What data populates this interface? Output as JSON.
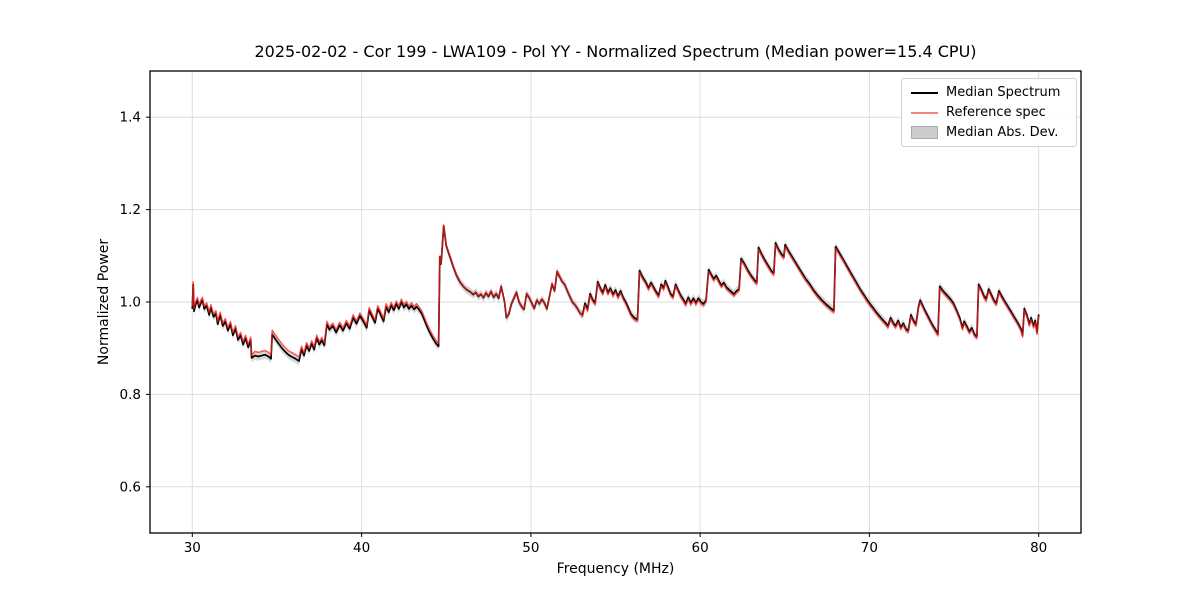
{
  "chart_data": {
    "type": "line",
    "title": "2025-02-02 - Cor 199 - LWA109 - Pol YY - Normalized Spectrum (Median power=15.4 CPU)",
    "xlabel": "Frequency (MHz)",
    "ylabel": "Normalized Power",
    "xlim": [
      27.5,
      82.5
    ],
    "ylim": [
      0.5,
      1.5
    ],
    "xticks": [
      30,
      40,
      50,
      60,
      70,
      80
    ],
    "yticks": [
      0.6,
      0.8,
      1.0,
      1.2,
      1.4
    ],
    "grid": true,
    "legend": {
      "position": "upper right",
      "entries": [
        {
          "label": "Median Spectrum",
          "type": "line"
        },
        {
          "label": "Reference spec",
          "type": "line"
        },
        {
          "label": "Median Abs. Dev.",
          "type": "patch"
        }
      ]
    },
    "colors": {
      "grid": "#dedede",
      "frame": "#000000",
      "tick_text": "#000000",
      "median_line": "#000000",
      "reference_line": "#ff2020",
      "reference_opacity": 0.72,
      "band_fill": "#999999",
      "band_opacity": 0.4,
      "legend_median_swatch": "#000000",
      "legend_reference_swatch": "#f58080",
      "legend_band_fill": "#cccccc",
      "legend_band_edge": "#ababab"
    },
    "mad_halfwidth": 0.009,
    "reference_offsets": [
      {
        "from": 27.5,
        "to": 33.5,
        "dv": 0.006
      },
      {
        "from": 33.5,
        "to": 36.4,
        "dv": 0.009
      },
      {
        "from": 36.4,
        "to": 44.6,
        "dv": 0.006
      },
      {
        "from": 44.6,
        "to": 53.0,
        "dv": 0.001
      },
      {
        "from": 53.0,
        "to": 82.5,
        "dv": -0.004
      }
    ],
    "median_points": [
      [
        30.0,
        0.985
      ],
      [
        30.05,
        1.038
      ],
      [
        30.1,
        0.98
      ],
      [
        30.2,
        0.995
      ],
      [
        30.3,
        1.004
      ],
      [
        30.4,
        0.988
      ],
      [
        30.5,
        0.998
      ],
      [
        30.6,
        1.004
      ],
      [
        30.7,
        0.985
      ],
      [
        30.85,
        0.992
      ],
      [
        31.0,
        0.972
      ],
      [
        31.1,
        0.988
      ],
      [
        31.25,
        0.968
      ],
      [
        31.4,
        0.975
      ],
      [
        31.5,
        0.952
      ],
      [
        31.65,
        0.972
      ],
      [
        31.8,
        0.948
      ],
      [
        31.95,
        0.958
      ],
      [
        32.1,
        0.938
      ],
      [
        32.25,
        0.952
      ],
      [
        32.4,
        0.928
      ],
      [
        32.55,
        0.943
      ],
      [
        32.7,
        0.918
      ],
      [
        32.85,
        0.928
      ],
      [
        33.0,
        0.908
      ],
      [
        33.15,
        0.922
      ],
      [
        33.3,
        0.902
      ],
      [
        33.45,
        0.918
      ],
      [
        33.5,
        0.879
      ],
      [
        33.7,
        0.884
      ],
      [
        33.9,
        0.882
      ],
      [
        34.1,
        0.884
      ],
      [
        34.3,
        0.886
      ],
      [
        34.5,
        0.882
      ],
      [
        34.65,
        0.877
      ],
      [
        34.72,
        0.93
      ],
      [
        34.9,
        0.92
      ],
      [
        35.1,
        0.91
      ],
      [
        35.3,
        0.9
      ],
      [
        35.5,
        0.892
      ],
      [
        35.7,
        0.885
      ],
      [
        35.9,
        0.881
      ],
      [
        36.1,
        0.877
      ],
      [
        36.3,
        0.872
      ],
      [
        36.45,
        0.898
      ],
      [
        36.6,
        0.884
      ],
      [
        36.75,
        0.906
      ],
      [
        36.9,
        0.894
      ],
      [
        37.05,
        0.91
      ],
      [
        37.2,
        0.897
      ],
      [
        37.35,
        0.922
      ],
      [
        37.5,
        0.908
      ],
      [
        37.65,
        0.917
      ],
      [
        37.8,
        0.906
      ],
      [
        37.95,
        0.952
      ],
      [
        38.1,
        0.94
      ],
      [
        38.3,
        0.948
      ],
      [
        38.5,
        0.934
      ],
      [
        38.7,
        0.95
      ],
      [
        38.9,
        0.938
      ],
      [
        39.1,
        0.954
      ],
      [
        39.3,
        0.942
      ],
      [
        39.5,
        0.966
      ],
      [
        39.7,
        0.953
      ],
      [
        39.9,
        0.97
      ],
      [
        40.1,
        0.958
      ],
      [
        40.3,
        0.944
      ],
      [
        40.45,
        0.982
      ],
      [
        40.6,
        0.97
      ],
      [
        40.8,
        0.955
      ],
      [
        40.95,
        0.986
      ],
      [
        41.1,
        0.975
      ],
      [
        41.3,
        0.958
      ],
      [
        41.45,
        0.99
      ],
      [
        41.6,
        0.978
      ],
      [
        41.75,
        0.993
      ],
      [
        41.9,
        0.982
      ],
      [
        42.05,
        0.996
      ],
      [
        42.2,
        0.985
      ],
      [
        42.35,
        1.0
      ],
      [
        42.5,
        0.988
      ],
      [
        42.65,
        0.995
      ],
      [
        42.8,
        0.985
      ],
      [
        42.95,
        0.992
      ],
      [
        43.1,
        0.984
      ],
      [
        43.25,
        0.99
      ],
      [
        43.4,
        0.983
      ],
      [
        43.55,
        0.975
      ],
      [
        43.7,
        0.962
      ],
      [
        43.85,
        0.948
      ],
      [
        44.0,
        0.936
      ],
      [
        44.2,
        0.922
      ],
      [
        44.4,
        0.91
      ],
      [
        44.55,
        0.904
      ],
      [
        44.62,
        1.098
      ],
      [
        44.7,
        1.082
      ],
      [
        44.85,
        1.165
      ],
      [
        45.0,
        1.122
      ],
      [
        45.2,
        1.1
      ],
      [
        45.4,
        1.078
      ],
      [
        45.6,
        1.058
      ],
      [
        45.8,
        1.044
      ],
      [
        46.0,
        1.034
      ],
      [
        46.2,
        1.027
      ],
      [
        46.45,
        1.021
      ],
      [
        46.6,
        1.016
      ],
      [
        46.75,
        1.021
      ],
      [
        46.9,
        1.012
      ],
      [
        47.05,
        1.017
      ],
      [
        47.2,
        1.009
      ],
      [
        47.35,
        1.02
      ],
      [
        47.5,
        1.012
      ],
      [
        47.65,
        1.023
      ],
      [
        47.8,
        1.01
      ],
      [
        47.95,
        1.018
      ],
      [
        48.1,
        1.008
      ],
      [
        48.25,
        1.034
      ],
      [
        48.45,
        1.0
      ],
      [
        48.55,
        0.966
      ],
      [
        48.7,
        0.974
      ],
      [
        48.85,
        0.996
      ],
      [
        49.0,
        1.008
      ],
      [
        49.15,
        1.021
      ],
      [
        49.3,
        1.0
      ],
      [
        49.45,
        0.99
      ],
      [
        49.6,
        0.984
      ],
      [
        49.75,
        1.018
      ],
      [
        49.9,
        1.009
      ],
      [
        50.05,
        0.998
      ],
      [
        50.2,
        0.986
      ],
      [
        50.35,
        1.004
      ],
      [
        50.5,
        0.996
      ],
      [
        50.65,
        1.006
      ],
      [
        50.8,
        0.998
      ],
      [
        50.95,
        0.985
      ],
      [
        51.1,
        1.012
      ],
      [
        51.25,
        1.039
      ],
      [
        51.4,
        1.024
      ],
      [
        51.55,
        1.066
      ],
      [
        51.7,
        1.055
      ],
      [
        51.85,
        1.044
      ],
      [
        52.0,
        1.038
      ],
      [
        52.15,
        1.024
      ],
      [
        52.3,
        1.012
      ],
      [
        52.45,
        1.0
      ],
      [
        52.6,
        0.994
      ],
      [
        52.75,
        0.986
      ],
      [
        52.9,
        0.976
      ],
      [
        53.05,
        0.972
      ],
      [
        53.2,
        0.997
      ],
      [
        53.35,
        0.984
      ],
      [
        53.5,
        1.018
      ],
      [
        53.65,
        1.005
      ],
      [
        53.8,
        0.998
      ],
      [
        53.95,
        1.044
      ],
      [
        54.1,
        1.03
      ],
      [
        54.25,
        1.02
      ],
      [
        54.4,
        1.037
      ],
      [
        54.55,
        1.02
      ],
      [
        54.7,
        1.03
      ],
      [
        54.85,
        1.016
      ],
      [
        55.0,
        1.026
      ],
      [
        55.15,
        1.012
      ],
      [
        55.3,
        1.024
      ],
      [
        55.45,
        1.01
      ],
      [
        55.6,
        1.0
      ],
      [
        55.75,
        0.988
      ],
      [
        55.9,
        0.975
      ],
      [
        56.1,
        0.966
      ],
      [
        56.3,
        0.962
      ],
      [
        56.42,
        1.068
      ],
      [
        56.6,
        1.054
      ],
      [
        56.8,
        1.042
      ],
      [
        56.95,
        1.03
      ],
      [
        57.1,
        1.042
      ],
      [
        57.25,
        1.032
      ],
      [
        57.4,
        1.022
      ],
      [
        57.55,
        1.014
      ],
      [
        57.7,
        1.038
      ],
      [
        57.85,
        1.03
      ],
      [
        57.95,
        1.046
      ],
      [
        58.1,
        1.032
      ],
      [
        58.25,
        1.018
      ],
      [
        58.4,
        1.012
      ],
      [
        58.55,
        1.038
      ],
      [
        58.7,
        1.026
      ],
      [
        58.85,
        1.014
      ],
      [
        59.0,
        1.006
      ],
      [
        59.15,
        0.996
      ],
      [
        59.3,
        1.01
      ],
      [
        59.45,
        0.998
      ],
      [
        59.6,
        1.008
      ],
      [
        59.75,
        0.998
      ],
      [
        59.9,
        1.008
      ],
      [
        60.05,
        1.0
      ],
      [
        60.2,
        0.996
      ],
      [
        60.35,
        1.004
      ],
      [
        60.5,
        1.07
      ],
      [
        60.65,
        1.06
      ],
      [
        60.8,
        1.05
      ],
      [
        60.95,
        1.057
      ],
      [
        61.1,
        1.046
      ],
      [
        61.25,
        1.036
      ],
      [
        61.4,
        1.042
      ],
      [
        61.55,
        1.032
      ],
      [
        61.7,
        1.027
      ],
      [
        61.85,
        1.022
      ],
      [
        62.0,
        1.017
      ],
      [
        62.15,
        1.024
      ],
      [
        62.3,
        1.028
      ],
      [
        62.42,
        1.094
      ],
      [
        62.6,
        1.084
      ],
      [
        62.8,
        1.07
      ],
      [
        63.0,
        1.058
      ],
      [
        63.2,
        1.048
      ],
      [
        63.35,
        1.042
      ],
      [
        63.45,
        1.118
      ],
      [
        63.6,
        1.106
      ],
      [
        63.8,
        1.092
      ],
      [
        64.0,
        1.08
      ],
      [
        64.2,
        1.068
      ],
      [
        64.35,
        1.062
      ],
      [
        64.45,
        1.128
      ],
      [
        64.6,
        1.116
      ],
      [
        64.8,
        1.104
      ],
      [
        64.95,
        1.098
      ],
      [
        65.02,
        1.124
      ],
      [
        65.2,
        1.112
      ],
      [
        65.4,
        1.1
      ],
      [
        65.6,
        1.088
      ],
      [
        65.8,
        1.076
      ],
      [
        66.0,
        1.064
      ],
      [
        66.2,
        1.052
      ],
      [
        66.45,
        1.04
      ],
      [
        66.7,
        1.026
      ],
      [
        66.95,
        1.014
      ],
      [
        67.2,
        1.004
      ],
      [
        67.45,
        0.995
      ],
      [
        67.7,
        0.987
      ],
      [
        67.9,
        0.981
      ],
      [
        68.0,
        1.12
      ],
      [
        68.2,
        1.108
      ],
      [
        68.45,
        1.092
      ],
      [
        68.7,
        1.076
      ],
      [
        68.95,
        1.06
      ],
      [
        69.2,
        1.044
      ],
      [
        69.45,
        1.028
      ],
      [
        69.7,
        1.014
      ],
      [
        69.95,
        1.0
      ],
      [
        70.2,
        0.988
      ],
      [
        70.45,
        0.976
      ],
      [
        70.7,
        0.965
      ],
      [
        70.95,
        0.955
      ],
      [
        71.1,
        0.948
      ],
      [
        71.25,
        0.966
      ],
      [
        71.4,
        0.955
      ],
      [
        71.55,
        0.948
      ],
      [
        71.7,
        0.96
      ],
      [
        71.85,
        0.945
      ],
      [
        72.0,
        0.954
      ],
      [
        72.15,
        0.942
      ],
      [
        72.3,
        0.938
      ],
      [
        72.45,
        0.972
      ],
      [
        72.6,
        0.96
      ],
      [
        72.75,
        0.952
      ],
      [
        72.9,
        0.99
      ],
      [
        73.0,
        1.004
      ],
      [
        73.15,
        0.992
      ],
      [
        73.3,
        0.98
      ],
      [
        73.5,
        0.966
      ],
      [
        73.7,
        0.952
      ],
      [
        73.9,
        0.94
      ],
      [
        74.05,
        0.931
      ],
      [
        74.15,
        1.034
      ],
      [
        74.35,
        1.024
      ],
      [
        74.55,
        1.016
      ],
      [
        74.75,
        1.008
      ],
      [
        74.95,
        0.998
      ],
      [
        75.15,
        0.982
      ],
      [
        75.35,
        0.964
      ],
      [
        75.5,
        0.944
      ],
      [
        75.6,
        0.958
      ],
      [
        75.75,
        0.948
      ],
      [
        75.9,
        0.936
      ],
      [
        76.05,
        0.944
      ],
      [
        76.2,
        0.93
      ],
      [
        76.35,
        0.925
      ],
      [
        76.45,
        1.038
      ],
      [
        76.6,
        1.028
      ],
      [
        76.75,
        1.014
      ],
      [
        76.9,
        1.006
      ],
      [
        77.05,
        1.028
      ],
      [
        77.2,
        1.016
      ],
      [
        77.35,
        1.004
      ],
      [
        77.5,
        0.997
      ],
      [
        77.65,
        1.024
      ],
      [
        77.8,
        1.014
      ],
      [
        77.95,
        1.004
      ],
      [
        78.15,
        0.992
      ],
      [
        78.35,
        0.98
      ],
      [
        78.55,
        0.968
      ],
      [
        78.75,
        0.956
      ],
      [
        78.95,
        0.942
      ],
      [
        79.05,
        0.928
      ],
      [
        79.15,
        0.986
      ],
      [
        79.3,
        0.972
      ],
      [
        79.45,
        0.952
      ],
      [
        79.55,
        0.966
      ],
      [
        79.7,
        0.948
      ],
      [
        79.8,
        0.96
      ],
      [
        79.9,
        0.934
      ],
      [
        80.0,
        0.973
      ]
    ]
  }
}
